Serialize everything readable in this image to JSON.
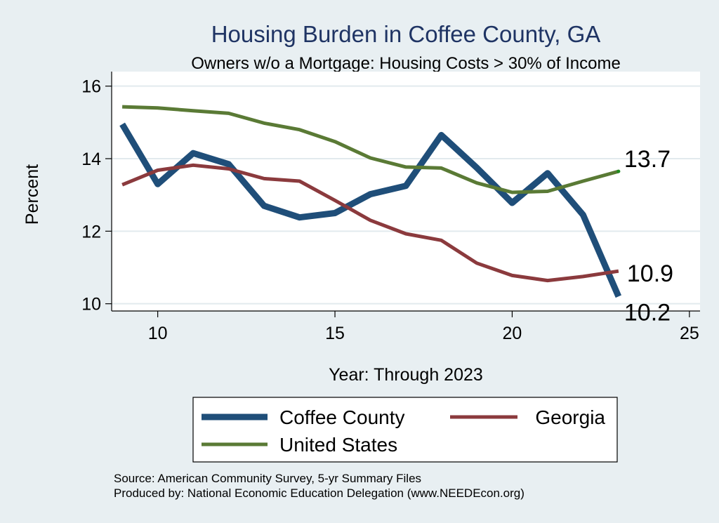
{
  "chart_data": {
    "type": "line",
    "title": "Housing Burden in Coffee County, GA",
    "subtitle": "Owners w/o a Mortgage: Housing Costs > 30% of Income",
    "xlabel": "Year: Through 2023",
    "ylabel": "Percent",
    "xlim": [
      8.7,
      25.3
    ],
    "ylim": [
      9.8,
      16.4
    ],
    "x_ticks": [
      10,
      15,
      20,
      25
    ],
    "y_ticks": [
      10,
      12,
      14,
      16
    ],
    "x": [
      9,
      10,
      11,
      12,
      13,
      14,
      15,
      16,
      17,
      18,
      19,
      20,
      21,
      22,
      23
    ],
    "series": [
      {
        "name": "Coffee County",
        "color": "#1f4e79",
        "values": [
          14.95,
          13.3,
          14.15,
          13.85,
          12.7,
          12.38,
          12.5,
          13.02,
          13.25,
          14.65,
          13.75,
          12.78,
          13.6,
          12.45,
          10.2
        ],
        "end_label": "10.2"
      },
      {
        "name": "Georgia",
        "color": "#8b3a3d",
        "values": [
          13.28,
          13.68,
          13.82,
          13.72,
          13.45,
          13.38,
          12.85,
          12.3,
          11.93,
          11.75,
          11.12,
          10.78,
          10.64,
          10.75,
          10.9
        ],
        "end_label": "10.9"
      },
      {
        "name": "United States",
        "color": "#5a7a35",
        "values": [
          15.43,
          15.4,
          15.32,
          15.25,
          14.98,
          14.8,
          14.47,
          14.02,
          13.77,
          13.74,
          13.33,
          13.07,
          13.1,
          13.38,
          13.65
        ],
        "end_label": "13.7"
      }
    ],
    "legend": {
      "placement": "bottom",
      "entries": [
        "Coffee County",
        "Georgia",
        "United States"
      ]
    },
    "notes": [
      "Source: American Community Survey, 5-yr Summary Files",
      "Produced by: National Economic Education Delegation (www.NEEDEcon.org)"
    ],
    "grid": true
  },
  "colors": {
    "background": "#e8eff2",
    "plot_background": "#ffffff",
    "title": "#1f3464",
    "grid": "#e2eaee"
  }
}
